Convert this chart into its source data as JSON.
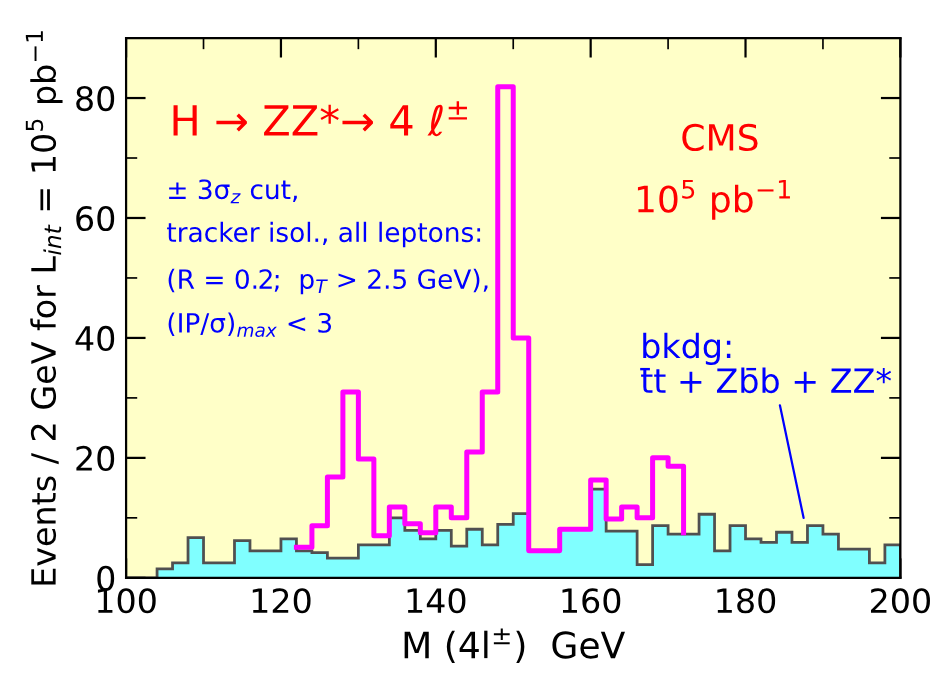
{
  "chart_data": {
    "type": "histogram",
    "xlabel": "M (4l$^{±}$)  GeV",
    "ylabel": "Events / 2 GeV for L$_{int}$ = 10$^{5}$ pb$^{−1}$",
    "bins": [
      100,
      102,
      104,
      106,
      108,
      110,
      112,
      114,
      116,
      118,
      120,
      122,
      124,
      126,
      128,
      130,
      132,
      134,
      136,
      138,
      140,
      142,
      144,
      146,
      148,
      150,
      152,
      154,
      156,
      158,
      160,
      162,
      164,
      166,
      168,
      170,
      172,
      174,
      176,
      178,
      180,
      182,
      184,
      186,
      188,
      190,
      192,
      194,
      196,
      198,
      200
    ],
    "series": [
      {
        "type": "histogram",
        "color": "#80ffff",
        "values": [
          0,
          0,
          1.5,
          2.5,
          6.7,
          2.5,
          2.5,
          6.2,
          4.5,
          4.5,
          6.5,
          4.5,
          4.2,
          3.3,
          3.3,
          5.5,
          5.5,
          10,
          7.9,
          6.5,
          7.9,
          5.3,
          8.1,
          5.5,
          8.9,
          10.7,
          4.5,
          4.5,
          8.1,
          8.1,
          14.8,
          7.8,
          7.8,
          2.2,
          8.7,
          7.3,
          7.3,
          10.6,
          4.5,
          8.7,
          6.5,
          5.9,
          7.6,
          5.9,
          8.7,
          7.3,
          4.8,
          4.8,
          2.5,
          5.5
        ]
      },
      {
        "type": "step",
        "color": "#ff00ff",
        "x": [
          122,
          124,
          126,
          128,
          130,
          132,
          134,
          136,
          138,
          140,
          142,
          144,
          146,
          148,
          150,
          152,
          154,
          156,
          158,
          160,
          162,
          164,
          166,
          168,
          170,
          172
        ],
        "values": [
          5.1,
          8.7,
          16.8,
          31,
          19.8,
          7,
          11.8,
          9,
          7.5,
          11.8,
          10,
          21,
          31,
          81.9,
          40,
          4.5,
          4.5,
          8.1,
          8.1,
          16.3,
          9.8,
          11.8,
          10,
          20,
          18.6,
          7.5
        ]
      }
    ],
    "xlim": [
      100,
      200
    ],
    "xticks": [
      100,
      120,
      140,
      160,
      180,
      200
    ],
    "ylim": [
      0,
      90
    ],
    "yticks": [
      0,
      20,
      40,
      60,
      80
    ],
    "annotations": [
      "H → ZZ*→ 4 ℓ$^{±}$",
      "CMS",
      "10$^{5}$ pb$^{−1}$",
      "± 3σ$_{z}$ cut,",
      "tracker isol., all leptons:",
      "(R = 0.2;  p$_{T}$ > 2.5 GeV),",
      "(IP/σ)$_{max}$ < 3",
      {
        "text": "bkdg:\nt̄t + Zb̄b + ZZ*",
        "x": 187.5,
        "y": 10
      }
    ],
    "grid": false,
    "legend": false
  }
}
